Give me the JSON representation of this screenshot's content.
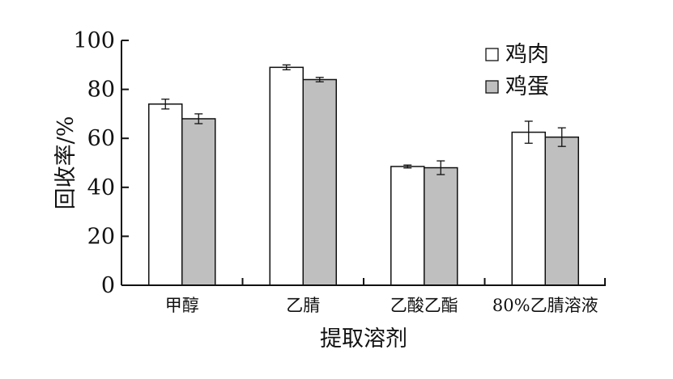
{
  "chart_data": {
    "type": "bar",
    "categories": [
      "甲醇",
      "乙腈",
      "乙酸乙酯",
      "80%乙腈溶液"
    ],
    "series": [
      {
        "name": "鸡肉",
        "values": [
          74,
          89,
          48.5,
          62.5
        ],
        "errors": [
          2,
          1,
          0.6,
          4.5
        ],
        "color": "#ffffff"
      },
      {
        "name": "鸡蛋",
        "values": [
          68,
          84,
          48,
          60.5
        ],
        "errors": [
          2,
          0.9,
          2.8,
          3.8
        ],
        "color": "#bfbfbf"
      }
    ],
    "xlabel": "提取溶剂",
    "ylabel": "回收率/%",
    "ylim": [
      0,
      100
    ],
    "yticks": [
      "0",
      "20",
      "40",
      "60",
      "80",
      "100"
    ],
    "legend_position": "top-right",
    "grid": false
  }
}
